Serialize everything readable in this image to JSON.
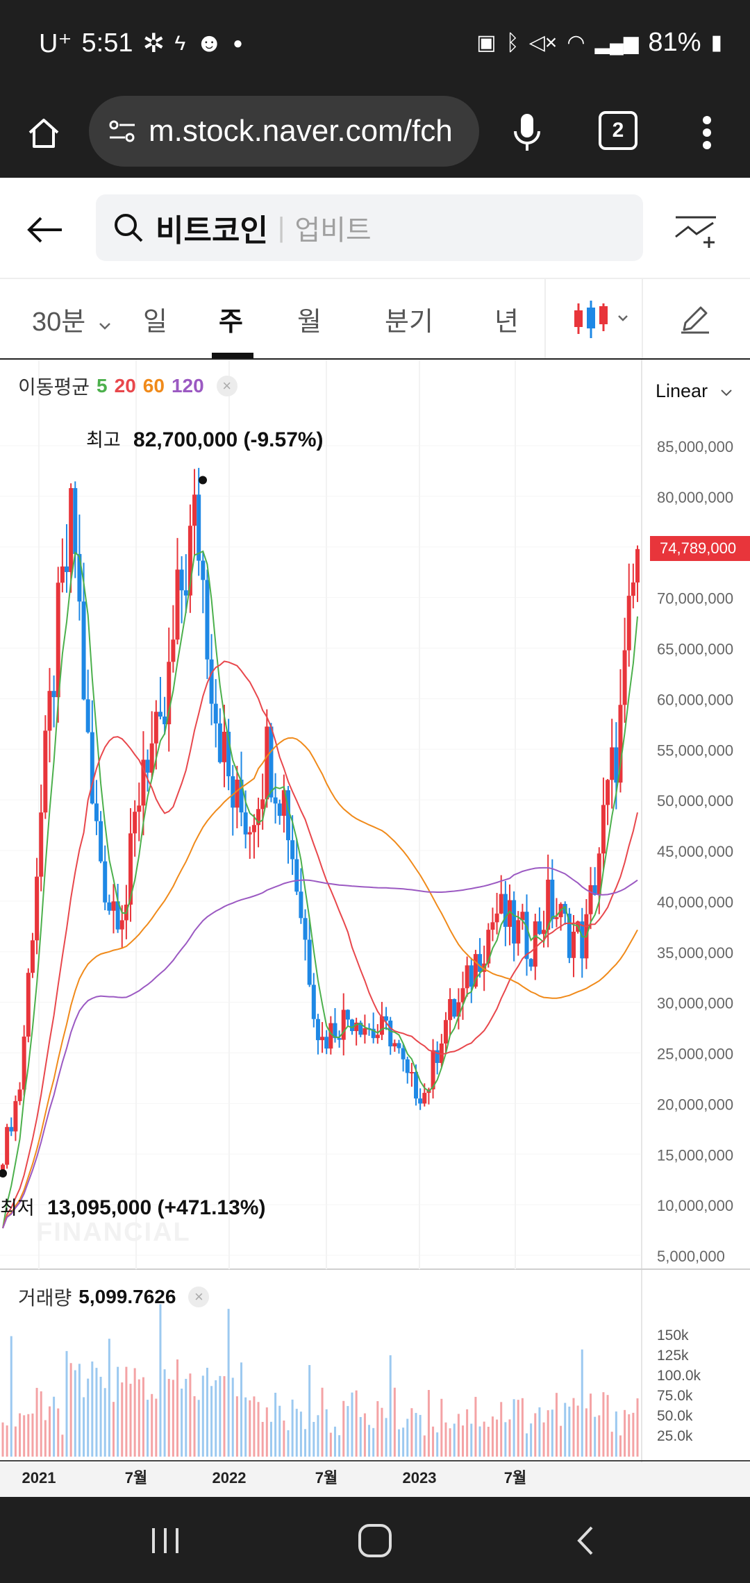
{
  "status_bar": {
    "carrier": "U⁺",
    "time": "5:51",
    "battery": "81%",
    "icons": [
      "fan-icon",
      "charging-icon",
      "face-icon",
      "dot-icon",
      "battery-saver-icon",
      "bluetooth-icon",
      "mute-icon",
      "wifi-icon",
      "signal-icon",
      "battery-icon"
    ]
  },
  "browser": {
    "url": "m.stock.naver.com/fch",
    "tab_count": "2"
  },
  "header": {
    "title": "비트코인",
    "subtitle": "업비트"
  },
  "periods": {
    "items": [
      "30분",
      "일",
      "주",
      "월",
      "분기",
      "년"
    ],
    "active": "주"
  },
  "chart": {
    "scale_mode": "Linear",
    "ma_legend_label": "이동평균",
    "ma_periods": [
      "5",
      "20",
      "60",
      "120"
    ],
    "ma_colors": [
      "#4cb04c",
      "#e8474c",
      "#f08a1a",
      "#9b59c2"
    ],
    "high_label": "최고",
    "high_value": "82,700,000 (-9.57%)",
    "low_label": "최저",
    "low_value": "13,095,000 (+471.13%)",
    "current_price": "74,789,000",
    "watermark": "FINANCIAL",
    "up_color": "#e8353b",
    "down_color": "#1e88e5",
    "y_ticks": [
      "85,000,000",
      "80,000,000",
      "75,000,000",
      "70,000,000",
      "65,000,000",
      "60,000,000",
      "55,000,000",
      "50,000,000",
      "45,000,000",
      "40,000,000",
      "35,000,000",
      "30,000,000",
      "25,000,000",
      "20,000,000",
      "15,000,000",
      "10,000,000",
      "5,000,000"
    ],
    "x_ticks": [
      "2021",
      "7월",
      "2022",
      "7월",
      "2023",
      "7월"
    ],
    "volume_label": "거래량",
    "volume_value": "5,099.7626",
    "volume_ticks": [
      "150k",
      "125k",
      "100.0k",
      "75.0k",
      "50.0k",
      "25.0k"
    ]
  },
  "chart_data": {
    "type": "candlestick",
    "interval": "주",
    "series": [
      {
        "name": "price",
        "x": [
          "2020-12",
          "2021-01",
          "2021-02",
          "2021-03",
          "2021-04",
          "2021-05",
          "2021-06",
          "2021-07",
          "2021-08",
          "2021-09",
          "2021-10",
          "2021-11",
          "2021-12",
          "2022-01",
          "2022-02",
          "2022-03",
          "2022-04",
          "2022-05",
          "2022-06",
          "2022-07",
          "2022-08",
          "2022-09",
          "2022-10",
          "2022-11",
          "2022-12",
          "2023-01",
          "2023-02",
          "2023-03",
          "2023-04",
          "2023-05",
          "2023-06",
          "2023-07",
          "2023-08",
          "2023-09",
          "2023-10",
          "2023-11",
          "2023-12"
        ],
        "values": [
          15000000,
          22000000,
          45000000,
          65000000,
          78000000,
          50000000,
          40000000,
          40000000,
          55000000,
          55000000,
          70000000,
          78000000,
          60000000,
          50000000,
          48000000,
          55000000,
          50000000,
          38000000,
          26000000,
          28000000,
          29000000,
          27000000,
          27000000,
          22000000,
          21000000,
          28000000,
          30000000,
          35000000,
          39000000,
          37000000,
          36000000,
          40000000,
          37000000,
          36000000,
          47000000,
          57000000,
          74789000
        ]
      }
    ],
    "ylim": [
      5000000,
      85000000
    ]
  }
}
